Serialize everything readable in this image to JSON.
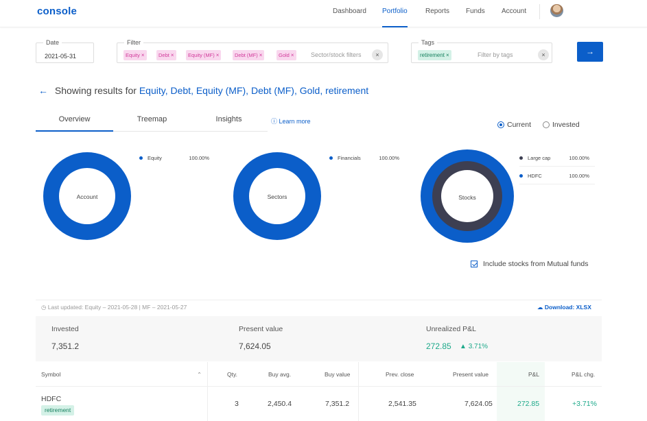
{
  "app": {
    "logo": "console"
  },
  "nav": {
    "items": [
      "Dashboard",
      "Portfolio",
      "Reports",
      "Funds",
      "Account"
    ],
    "active": "Portfolio"
  },
  "filters": {
    "date_label": "Date",
    "date_value": "2021-05-31",
    "filter_label": "Filter",
    "filter_chips": [
      "Equity",
      "Debt",
      "Equity (MF)",
      "Debt (MF)",
      "Gold"
    ],
    "filter_placeholder": "Sector/stock filters",
    "tags_label": "Tags",
    "tag_chips": [
      "retirement"
    ],
    "tags_placeholder": "Filter by tags",
    "clear_icon": "×",
    "chip_remove": "×",
    "go_icon": "→"
  },
  "results": {
    "prefix": "Showing results for",
    "terms": "Equity, Debt, Equity (MF), Debt (MF), Gold, retirement"
  },
  "tabs": {
    "items": [
      "Overview",
      "Treemap",
      "Insights"
    ],
    "active": "Overview",
    "learn_more": "Learn more"
  },
  "view_toggle": {
    "options": [
      "Current",
      "Invested"
    ],
    "selected": "Current"
  },
  "donuts": {
    "account": {
      "label": "Account",
      "legend": [
        {
          "name": "Equity",
          "pct": "100.00%",
          "color": "#0b5ec9"
        }
      ]
    },
    "sectors": {
      "label": "Sectors",
      "legend": [
        {
          "name": "Financials",
          "pct": "100.00%",
          "color": "#0b5ec9"
        }
      ]
    },
    "stocks": {
      "label": "Stocks",
      "legend": [
        {
          "name": "Large cap",
          "pct": "100.00%",
          "color": "#3d3f52"
        },
        {
          "name": "HDFC",
          "pct": "100.00%",
          "color": "#0b5ec9"
        }
      ]
    }
  },
  "include_mf": {
    "label": "Include stocks from Mutual funds",
    "checked": true
  },
  "meta": {
    "last_updated": "Last updated: Equity – 2021-05-28 | MF – 2021-05-27",
    "download": "Download: XLSX"
  },
  "summary": {
    "invested_label": "Invested",
    "invested": "7,351.2",
    "present_label": "Present value",
    "present": "7,624.05",
    "pnl_label": "Unrealized P&L",
    "pnl": "272.85",
    "pnl_pct": "3.71%"
  },
  "table": {
    "columns": [
      "Symbol",
      "Qty.",
      "Buy avg.",
      "Buy value",
      "Prev. close",
      "Present value",
      "P&L",
      "P&L chg."
    ],
    "rows": [
      {
        "symbol": "HDFC",
        "tag": "retirement",
        "qty": "3",
        "buy_avg": "2,450.4",
        "buy_value": "7,351.2",
        "prev_close": "2,541.35",
        "present_value": "7,624.05",
        "pnl": "272.85",
        "pnl_chg": "+3.71%"
      }
    ]
  },
  "colors": {
    "brand": "#0b5ec9",
    "positive": "#1da98a",
    "donut_dark": "#3d3f52"
  }
}
